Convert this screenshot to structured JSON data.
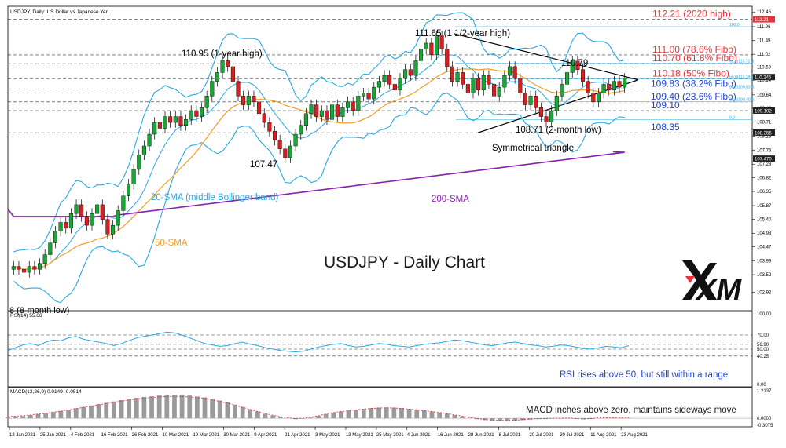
{
  "header": {
    "symbol_line": "USDJPY, Daily:  US Dollar vs Japanese Yen"
  },
  "chart_data": {
    "type": "candlestick",
    "title": "USDJPY - Daily Chart",
    "ylim": [
      102.4,
      112.6
    ],
    "price_axis_ticks": [
      112.46,
      111.96,
      111.49,
      111.02,
      110.59,
      110.14,
      109.64,
      109.18,
      108.71,
      108.23,
      107.76,
      107.28,
      106.82,
      106.35,
      105.87,
      105.4,
      104.93,
      104.47,
      103.99,
      103.52,
      102.92
    ],
    "tag_labels": [
      "112.21",
      "110.245",
      "109.102",
      "108.355",
      "107.470"
    ],
    "x_tick_labels": [
      "13 Jan 2021",
      "25 Jan 2021",
      "4 Feb 2021",
      "16 Feb 2021",
      "26 Feb 2021",
      "10 Mar 2021",
      "19 Mar 2021",
      "30 Mar 2021",
      "9 Apr 2021",
      "21 Apr 2021",
      "3 May 2021",
      "13 May 2021",
      "25 May 2021",
      "4 Jun 2021",
      "16 Jun 2021",
      "28 Jun 2021",
      "8 Jul 2021",
      "20 Jul 2021",
      "30 Jul 2021",
      "11 Aug 2021",
      "23 Aug 2021"
    ],
    "close_series": [
      103.8,
      103.7,
      103.6,
      103.8,
      103.7,
      103.9,
      104.2,
      104.6,
      105.0,
      105.3,
      105.1,
      105.6,
      105.9,
      105.5,
      105.2,
      105.6,
      105.9,
      105.4,
      104.9,
      105.2,
      105.7,
      106.2,
      106.6,
      107.1,
      107.6,
      107.9,
      108.3,
      108.7,
      108.5,
      108.9,
      108.7,
      108.9,
      108.6,
      108.8,
      109.1,
      108.9,
      109.2,
      109.6,
      110.1,
      110.4,
      110.8,
      110.6,
      110.1,
      109.6,
      109.3,
      109.6,
      109.4,
      109.0,
      108.7,
      108.4,
      108.1,
      107.8,
      107.5,
      107.9,
      108.3,
      108.6,
      109.0,
      109.3,
      108.9,
      109.1,
      108.8,
      109.3,
      108.9,
      109.2,
      109.4,
      109.1,
      109.6,
      109.7,
      109.5,
      109.9,
      110.1,
      110.3,
      110.0,
      109.8,
      110.2,
      110.5,
      110.3,
      110.8,
      111.2,
      111.4,
      111.0,
      111.65,
      111.2,
      110.6,
      110.1,
      110.4,
      110.0,
      109.7,
      110.2,
      109.8,
      110.3,
      110.0,
      109.6,
      109.9,
      110.3,
      110.6,
      110.2,
      109.7,
      109.3,
      109.6,
      109.2,
      108.9,
      108.71,
      109.1,
      109.6,
      110.0,
      110.4,
      110.79,
      110.5,
      110.1,
      109.7,
      109.4,
      109.7,
      110.0,
      109.8,
      110.1,
      109.9,
      110.2
    ],
    "levels": [
      {
        "price": 112.21,
        "label": "112.21 (2020 high)",
        "color": "#e8333a"
      },
      {
        "price": 111.0,
        "label": "111.00 (78.6% Fibo)",
        "color": "#e8333a"
      },
      {
        "price": 110.7,
        "label": "110.70 (61.8% Fibo)",
        "color": "#e8333a"
      },
      {
        "price": 110.18,
        "label": "110.18 (50% Fibo)",
        "color": "#e8333a"
      },
      {
        "price": 109.83,
        "label": "109.83 (38.2% Fibo)",
        "color": "#2244cc"
      },
      {
        "price": 109.4,
        "label": "109.40 (23.6% Fibo)",
        "color": "#2244cc"
      },
      {
        "price": 109.1,
        "label": "109.10",
        "color": "#2244cc"
      },
      {
        "price": 108.35,
        "label": "108.35",
        "color": "#2244cc"
      }
    ],
    "fib_small_labels": [
      "100.0",
      "61.8(110.717)",
      "50.0(110.183)",
      "38.2(109.839)",
      "23.6(109.403)",
      "0.0"
    ],
    "annotations": {
      "high_1y": "110.95 (1-year high)",
      "high_15y": "111.65 (1 1/2-year high)",
      "peak_jul": "110.79",
      "low_apr": "107.47",
      "low_2m": "108.71 (2-month low)",
      "triangle": "Symmetrical triangle",
      "low_8m": "8 (8-month low)",
      "sma20": "20-SMA (middle Bollinger band)",
      "sma50": "50-SMA",
      "sma200": "200-SMA"
    },
    "series": [
      {
        "name": "20-SMA (middle Bollinger band)",
        "color": "#29a9e0"
      },
      {
        "name": "50-SMA",
        "color": "#f39c24"
      },
      {
        "name": "200-SMA",
        "color": "#8b1fb0"
      }
    ],
    "rsi": {
      "header": "RSI(14) 55.66",
      "ticks": [
        "100.00",
        "70.00",
        "56.90",
        "50.00",
        "40.25",
        "0.00"
      ],
      "note": "RSI rises above 50, but still within a range",
      "values": [
        48,
        52,
        56,
        58,
        55,
        60,
        63,
        62,
        66,
        68,
        64,
        62,
        60,
        58,
        55,
        58,
        62,
        66,
        68,
        70,
        72,
        74,
        73,
        70,
        66,
        62,
        58,
        56,
        54,
        55,
        58,
        60,
        57,
        55,
        52,
        50,
        48,
        47,
        46,
        47,
        50,
        53,
        55,
        57,
        58,
        55,
        53,
        54,
        56,
        58,
        57,
        55,
        54,
        53,
        55,
        57,
        58,
        59,
        61,
        63,
        62,
        60,
        58,
        56,
        55,
        57,
        59,
        60,
        58,
        56,
        55,
        53,
        54,
        56,
        55,
        53,
        51,
        50,
        52,
        54,
        53,
        52,
        55
      ]
    },
    "macd": {
      "header": "MACD(12,26,9) 0.0149 -0.0514",
      "ticks": [
        "1.2137",
        "0.0000",
        "-0.3075"
      ],
      "note": "MACD inches above zero, maintains sideways move",
      "values": [
        0.05,
        0.08,
        0.1,
        0.14,
        0.18,
        0.22,
        0.27,
        0.32,
        0.38,
        0.44,
        0.5,
        0.56,
        0.62,
        0.68,
        0.74,
        0.8,
        0.85,
        0.9,
        0.94,
        0.97,
        1.0,
        1.02,
        1.03,
        1.02,
        1.0,
        0.96,
        0.92,
        0.86,
        0.78,
        0.7,
        0.6,
        0.5,
        0.4,
        0.3,
        0.2,
        0.12,
        0.05,
        0.0,
        -0.04,
        -0.02,
        0.03,
        0.1,
        0.18,
        0.25,
        0.3,
        0.34,
        0.38,
        0.42,
        0.45,
        0.47,
        0.48,
        0.47,
        0.45,
        0.42,
        0.38,
        0.34,
        0.3,
        0.25,
        0.2,
        0.14,
        0.08,
        0.02,
        -0.04,
        -0.08,
        -0.1,
        -0.12,
        -0.13,
        -0.11,
        -0.08,
        -0.06,
        -0.04,
        -0.03,
        -0.02,
        -0.02,
        -0.01,
        -0.03,
        -0.05,
        -0.03,
        -0.01,
        0.01,
        0.02,
        0.01,
        0.015
      ]
    }
  },
  "logo": "XM"
}
